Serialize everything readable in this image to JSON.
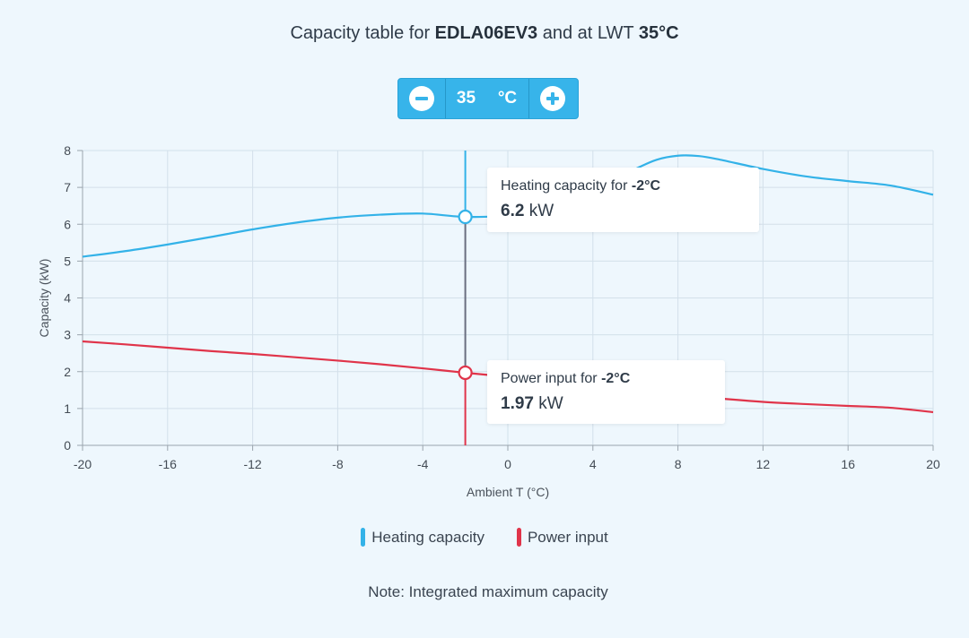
{
  "title": {
    "prefix": "Capacity table for ",
    "model": "EDLA06EV3",
    "middle": " and at LWT ",
    "lwt": "35°C"
  },
  "stepper": {
    "value": "35",
    "unit": "°C",
    "minus_icon": "minus-circle-icon",
    "plus_icon": "plus-circle-icon"
  },
  "tooltips": {
    "heating": {
      "label": "Heating capacity for ",
      "temp": "-2°C",
      "value": "6.2",
      "unit": " kW"
    },
    "power": {
      "label": "Power input for ",
      "temp": "-2°C",
      "value": "1.97",
      "unit": " kW"
    }
  },
  "legend": [
    {
      "label": "Heating capacity",
      "color": "#33b2e8"
    },
    {
      "label": "Power input",
      "color": "#e0344a"
    }
  ],
  "note": "Note: Integrated maximum capacity",
  "chart_data": {
    "type": "line",
    "xlabel": "Ambient T (°C)",
    "ylabel": "Capacity (kW)",
    "xlim": [
      -20,
      20
    ],
    "ylim": [
      0,
      8
    ],
    "xticks": [
      -20,
      -16,
      -12,
      -8,
      -4,
      0,
      4,
      8,
      12,
      16,
      20
    ],
    "yticks": [
      0,
      1,
      2,
      3,
      4,
      5,
      6,
      7,
      8
    ],
    "grid": true,
    "legend_position": "bottom",
    "crosshair_x": -2,
    "series": [
      {
        "name": "Heating capacity",
        "color": "#33b2e8",
        "x": [
          -20,
          -18,
          -16,
          -14,
          -12,
          -10,
          -8,
          -6,
          -4,
          -2,
          0,
          2,
          4,
          6,
          7,
          8,
          9,
          10,
          12,
          14,
          16,
          18,
          20
        ],
        "y": [
          5.12,
          5.27,
          5.45,
          5.65,
          5.86,
          6.04,
          6.18,
          6.26,
          6.29,
          6.2,
          6.25,
          6.55,
          6.95,
          7.5,
          7.75,
          7.86,
          7.85,
          7.75,
          7.5,
          7.3,
          7.17,
          7.05,
          6.8
        ]
      },
      {
        "name": "Power input",
        "color": "#e0344a",
        "x": [
          -20,
          -18,
          -16,
          -14,
          -12,
          -10,
          -8,
          -6,
          -4,
          -2,
          0,
          2,
          4,
          6,
          8,
          10,
          12,
          14,
          16,
          18,
          20
        ],
        "y": [
          2.82,
          2.74,
          2.65,
          2.56,
          2.48,
          2.39,
          2.3,
          2.2,
          2.09,
          1.97,
          1.86,
          1.74,
          1.62,
          1.5,
          1.38,
          1.27,
          1.18,
          1.12,
          1.07,
          1.02,
          0.9
        ]
      }
    ]
  }
}
